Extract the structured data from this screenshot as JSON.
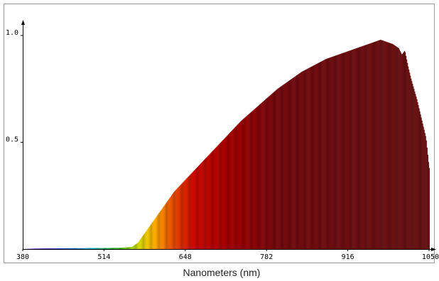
{
  "chart_data": {
    "type": "area",
    "xlabel": "Nanometers (nm)",
    "ylabel": "",
    "xlim": [
      380,
      1050
    ],
    "ylim": [
      0,
      1.0
    ],
    "x_ticks": [
      "380",
      "514",
      "648",
      "782",
      "916",
      "1050"
    ],
    "y_ticks": [
      "1.0",
      "0.5"
    ],
    "grid": false,
    "x": [
      380,
      400,
      420,
      440,
      460,
      480,
      500,
      520,
      540,
      560,
      570,
      580,
      590,
      600,
      610,
      620,
      630,
      640,
      650,
      660,
      680,
      700,
      720,
      740,
      760,
      780,
      800,
      820,
      840,
      860,
      880,
      900,
      920,
      940,
      960,
      970,
      980,
      990,
      1000,
      1005,
      1010,
      1015,
      1020,
      1025,
      1030,
      1035,
      1040,
      1045,
      1050
    ],
    "values": [
      0.0,
      0.002,
      0.003,
      0.003,
      0.004,
      0.004,
      0.005,
      0.005,
      0.006,
      0.01,
      0.03,
      0.07,
      0.11,
      0.15,
      0.19,
      0.23,
      0.27,
      0.3,
      0.33,
      0.36,
      0.42,
      0.48,
      0.54,
      0.6,
      0.65,
      0.7,
      0.75,
      0.79,
      0.83,
      0.86,
      0.89,
      0.91,
      0.93,
      0.95,
      0.97,
      0.98,
      0.97,
      0.96,
      0.94,
      0.91,
      0.93,
      0.86,
      0.8,
      0.75,
      0.7,
      0.64,
      0.58,
      0.52,
      0.38
    ]
  }
}
